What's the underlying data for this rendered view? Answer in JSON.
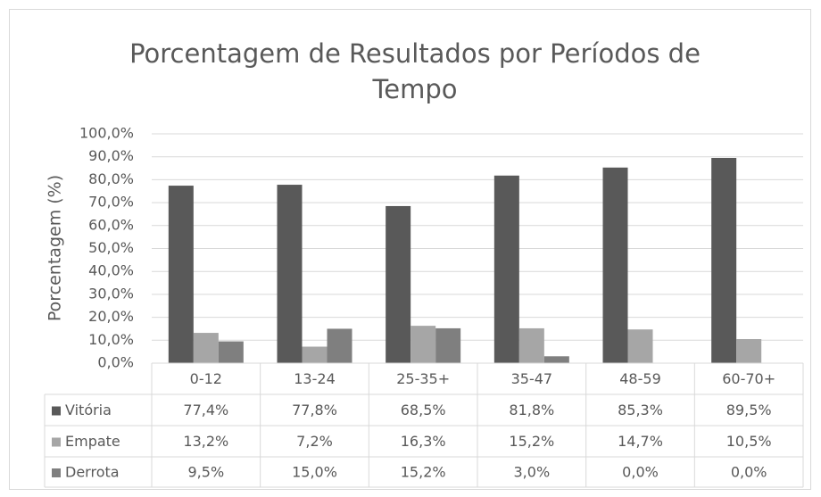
{
  "chart_data": {
    "type": "bar",
    "title": "Porcentagem de Resultados por Períodos de Tempo",
    "y_label": "Porcentagem (%)",
    "categories": [
      "0-12",
      "13-24",
      "25-35+",
      "35-47",
      "48-59",
      "60-70+"
    ],
    "series": [
      {
        "name": "Vitória",
        "color": "#595959",
        "values": [
          77.4,
          77.8,
          68.5,
          81.8,
          85.3,
          89.5
        ],
        "value_labels": [
          "77,4%",
          "77,8%",
          "68,5%",
          "81,8%",
          "85,3%",
          "89,5%"
        ]
      },
      {
        "name": "Empate",
        "color": "#a6a6a6",
        "values": [
          13.2,
          7.2,
          16.3,
          15.2,
          14.7,
          10.5
        ],
        "value_labels": [
          "13,2%",
          "7,2%",
          "16,3%",
          "15,2%",
          "14,7%",
          "10,5%"
        ]
      },
      {
        "name": "Derrota",
        "color": "#7f7f7f",
        "values": [
          9.5,
          15.0,
          15.2,
          3.0,
          0.0,
          0.0
        ],
        "value_labels": [
          "9,5%",
          "15,0%",
          "15,2%",
          "3,0%",
          "0,0%",
          "0,0%"
        ]
      }
    ],
    "ylim": [
      0,
      100
    ],
    "yticks": [
      {
        "value": 0,
        "label": "0,0%"
      },
      {
        "value": 10,
        "label": "10,0%"
      },
      {
        "value": 20,
        "label": "20,0%"
      },
      {
        "value": 30,
        "label": "30,0%"
      },
      {
        "value": 40,
        "label": "40,0%"
      },
      {
        "value": 50,
        "label": "50,0%"
      },
      {
        "value": 60,
        "label": "60,0%"
      },
      {
        "value": 70,
        "label": "70,0%"
      },
      {
        "value": 80,
        "label": "80,0%"
      },
      {
        "value": 90,
        "label": "90,0%"
      },
      {
        "value": 100,
        "label": "100,0%"
      }
    ],
    "grid": true
  }
}
